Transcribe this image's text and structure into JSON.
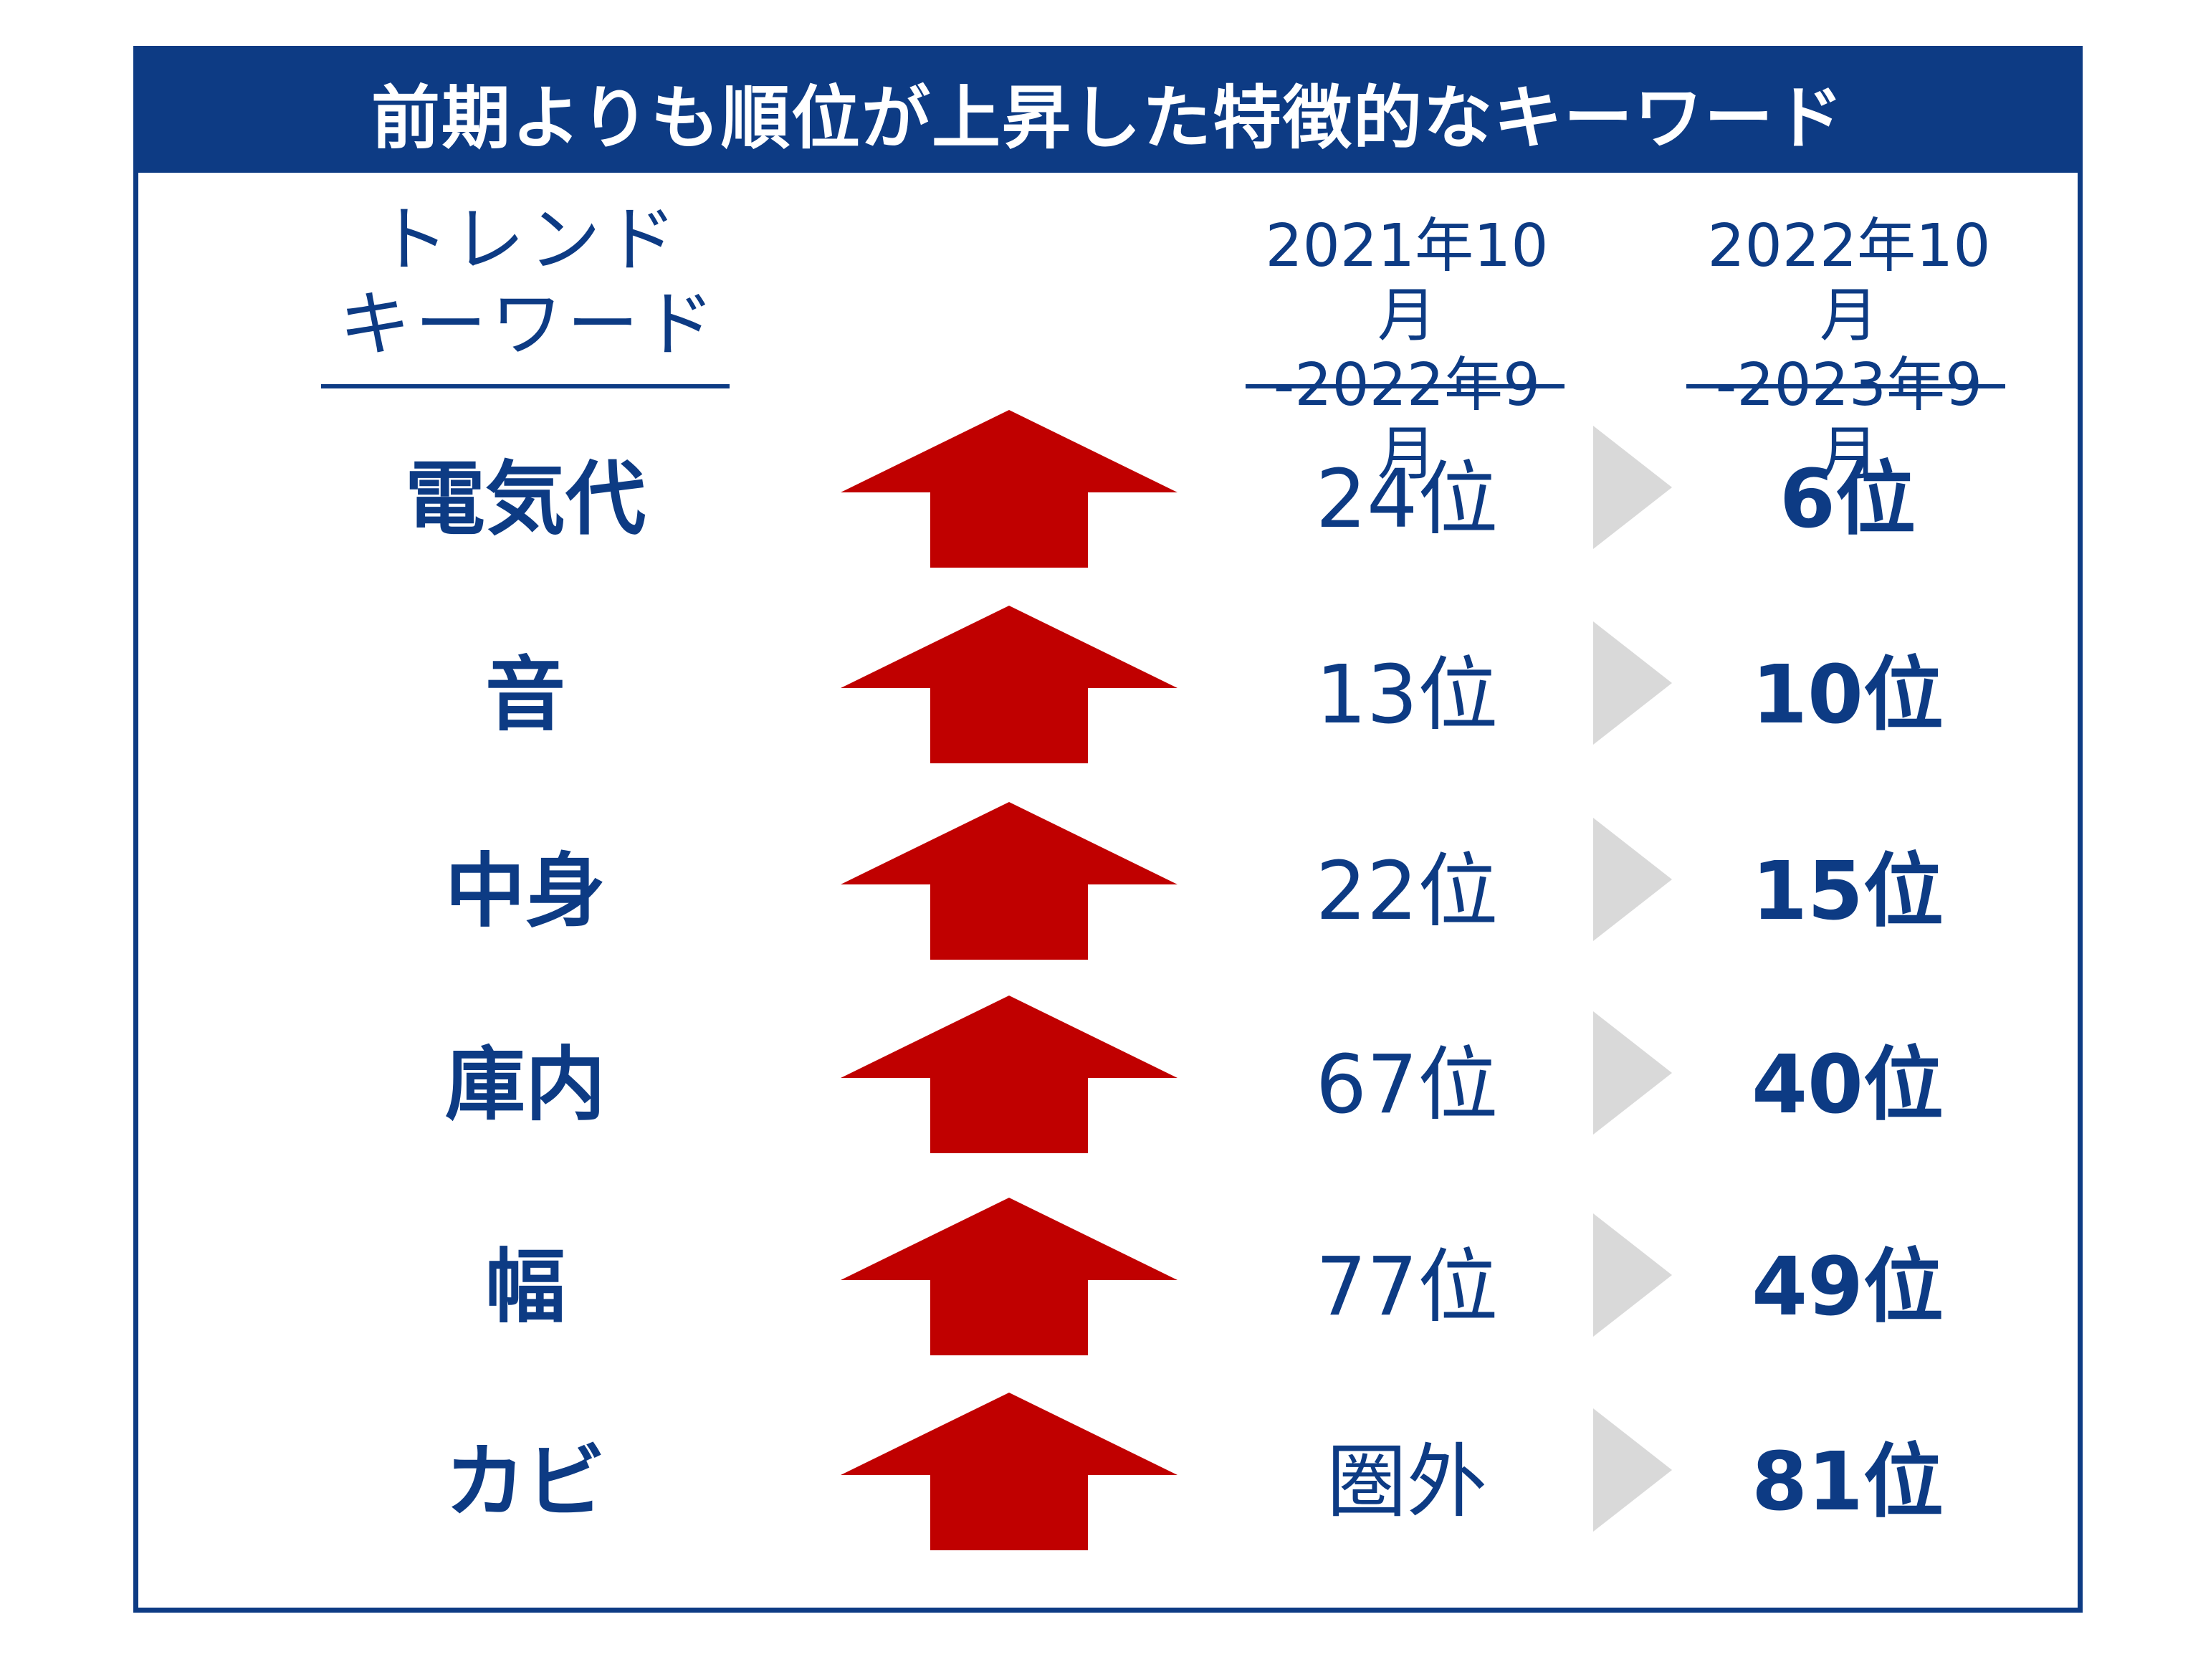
{
  "title": "前期よりも順位が上昇した特徴的なキーワード",
  "headers": {
    "keyword": [
      "トレンド",
      "キーワード"
    ],
    "period1": [
      "2021年10月",
      "-2022年9月"
    ],
    "period2": [
      "2022年10月",
      "-2023年9月"
    ]
  },
  "rows": [
    {
      "keyword": "電気代",
      "prev": "24位",
      "curr": "6位"
    },
    {
      "keyword": "音",
      "prev": "13位",
      "curr": "10位"
    },
    {
      "keyword": "中身",
      "prev": "22位",
      "curr": "15位"
    },
    {
      "keyword": "庫内",
      "prev": "67位",
      "curr": "40位"
    },
    {
      "keyword": "幅",
      "prev": "77位",
      "curr": "49位"
    },
    {
      "keyword": "カビ",
      "prev": "圏外",
      "curr": "81位"
    }
  ],
  "icons": {
    "trend": "up-arrow-icon",
    "transition": "chevron-right-icon"
  },
  "colors": {
    "navy": "#0d3b84",
    "arrow_red": "#c00000",
    "chevron_gray": "#d9d9d9"
  }
}
